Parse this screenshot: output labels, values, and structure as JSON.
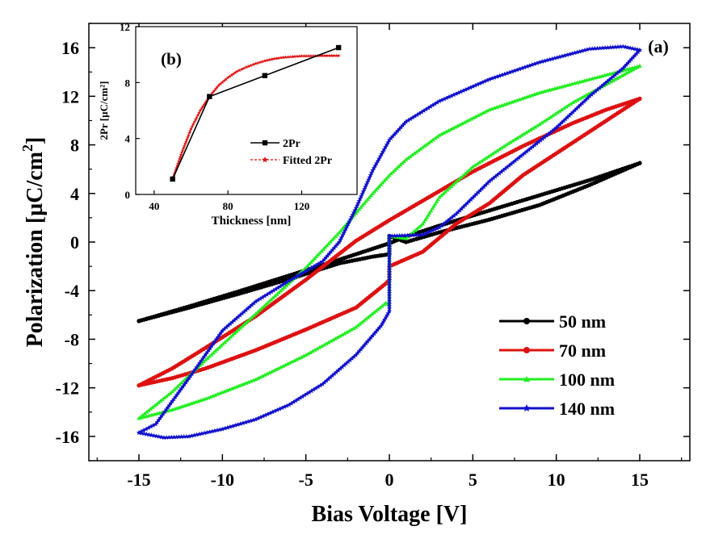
{
  "chart_data": [
    {
      "type": "line",
      "panel_label": "(a)",
      "xlabel": "Bias Voltage [V]",
      "ylabel_main": "Polarization [µC/cm",
      "ylabel_sup": "2",
      "ylabel_close": "]",
      "xlim": [
        -18,
        18
      ],
      "ylim": [
        -18,
        18
      ],
      "xticks": [
        -15,
        -10,
        -5,
        0,
        5,
        10,
        15
      ],
      "xtick_labels": [
        "-15",
        "-10",
        "-5",
        "0",
        "5",
        "10",
        "15"
      ],
      "yticks": [
        -16,
        -12,
        -8,
        -4,
        0,
        4,
        8,
        12,
        16
      ],
      "ytick_labels": [
        "-16",
        "-12",
        "-8",
        "-4",
        "0",
        "4",
        "8",
        "12",
        "16"
      ],
      "legend_position": "bottom-right",
      "series": [
        {
          "name": "50 nm",
          "color": "#000000",
          "marker": "circle",
          "upper": [
            [
              -15,
              -6.5
            ],
            [
              -12,
              -5.3
            ],
            [
              -9,
              -4.05
            ],
            [
              -6,
              -2.75
            ],
            [
              -3,
              -1.45
            ],
            [
              -1,
              -0.55
            ],
            [
              0,
              -0.1
            ],
            [
              1,
              0.45
            ],
            [
              3,
              1.35
            ],
            [
              6,
              2.6
            ],
            [
              9,
              3.85
            ],
            [
              12,
              5.1
            ],
            [
              15,
              6.5
            ]
          ],
          "lower": [
            [
              -15,
              -6.5
            ],
            [
              -12,
              -5.4
            ],
            [
              -9,
              -4.25
            ],
            [
              -6,
              -3.05
            ],
            [
              -3,
              -1.75
            ],
            [
              -1,
              -1.2
            ],
            [
              0,
              -1.0
            ],
            [
              0,
              0.5
            ],
            [
              1,
              0.0
            ],
            [
              3,
              0.8
            ],
            [
              6,
              1.85
            ],
            [
              9,
              3.05
            ],
            [
              12,
              4.7
            ],
            [
              15,
              6.5
            ]
          ]
        },
        {
          "name": "70 nm",
          "color": "#dd1111",
          "marker": "circle",
          "upper": [
            [
              -15,
              -11.8
            ],
            [
              -13,
              -10.4
            ],
            [
              -11,
              -8.7
            ],
            [
              -8,
              -6.1
            ],
            [
              -5,
              -3.1
            ],
            [
              -2,
              0.1
            ],
            [
              0,
              1.8
            ],
            [
              2,
              3.4
            ],
            [
              5,
              5.8
            ],
            [
              8,
              7.9
            ],
            [
              11,
              9.8
            ],
            [
              13,
              10.9
            ],
            [
              15,
              11.8
            ]
          ],
          "lower": [
            [
              -15,
              -11.8
            ],
            [
              -13,
              -11.2
            ],
            [
              -11,
              -10.4
            ],
            [
              -8,
              -8.9
            ],
            [
              -5,
              -7.2
            ],
            [
              -2,
              -5.4
            ],
            [
              -0.2,
              -3.4
            ],
            [
              0,
              -3.1
            ],
            [
              0,
              -2.0
            ],
            [
              2,
              -0.8
            ],
            [
              4,
              1.5
            ],
            [
              6,
              3.2
            ],
            [
              8,
              5.5
            ],
            [
              11,
              8.2
            ],
            [
              13,
              10.0
            ],
            [
              15,
              11.8
            ]
          ]
        },
        {
          "name": "100 nm",
          "color": "#22ee22",
          "marker": "triangle",
          "upper": [
            [
              -15,
              -14.5
            ],
            [
              -13,
              -12.3
            ],
            [
              -11,
              -9.7
            ],
            [
              -8,
              -5.9
            ],
            [
              -5,
              -2.1
            ],
            [
              -3,
              0.8
            ],
            [
              -1,
              4.0
            ],
            [
              0,
              5.5
            ],
            [
              1,
              6.8
            ],
            [
              3,
              8.8
            ],
            [
              6,
              10.9
            ],
            [
              9,
              12.3
            ],
            [
              12,
              13.4
            ],
            [
              15,
              14.5
            ]
          ],
          "lower": [
            [
              -15,
              -14.5
            ],
            [
              -13,
              -13.8
            ],
            [
              -11,
              -12.9
            ],
            [
              -8,
              -11.3
            ],
            [
              -5,
              -9.3
            ],
            [
              -2,
              -7.0
            ],
            [
              -0.2,
              -5.0
            ],
            [
              0,
              -5.2
            ],
            [
              0,
              0.5
            ],
            [
              1,
              0.3
            ],
            [
              2,
              1.5
            ],
            [
              3,
              3.7
            ],
            [
              5,
              6.2
            ],
            [
              7,
              8.0
            ],
            [
              9,
              9.7
            ],
            [
              11,
              11.5
            ],
            [
              13,
              13.0
            ],
            [
              15,
              14.5
            ]
          ]
        },
        {
          "name": "140 nm",
          "color": "#1111cc",
          "marker": "star",
          "upper": [
            [
              -15,
              -15.7
            ],
            [
              -14,
              -15.0
            ],
            [
              -12,
              -11.2
            ],
            [
              -10,
              -7.3
            ],
            [
              -8,
              -4.9
            ],
            [
              -6,
              -3.2
            ],
            [
              -4,
              -1.6
            ],
            [
              -3,
              0.0
            ],
            [
              -2,
              2.8
            ],
            [
              -1,
              5.9
            ],
            [
              0,
              8.4
            ],
            [
              1,
              9.9
            ],
            [
              3,
              11.6
            ],
            [
              6,
              13.4
            ],
            [
              9,
              14.8
            ],
            [
              12,
              15.9
            ],
            [
              14,
              16.1
            ],
            [
              15,
              15.8
            ]
          ],
          "lower": [
            [
              -15,
              -15.7
            ],
            [
              -13.5,
              -16.1
            ],
            [
              -12,
              -16.0
            ],
            [
              -10,
              -15.4
            ],
            [
              -8,
              -14.6
            ],
            [
              -6,
              -13.4
            ],
            [
              -4,
              -11.7
            ],
            [
              -2,
              -9.3
            ],
            [
              -0.5,
              -6.9
            ],
            [
              0,
              -5.7
            ],
            [
              0,
              0.5
            ],
            [
              2,
              0.6
            ],
            [
              3,
              1.2
            ],
            [
              4,
              2.3
            ],
            [
              6,
              5.0
            ],
            [
              8,
              7.2
            ],
            [
              10,
              9.4
            ],
            [
              12,
              12.0
            ],
            [
              14,
              14.3
            ],
            [
              15,
              15.8
            ]
          ]
        }
      ]
    },
    {
      "type": "line",
      "panel_label": "(b)",
      "xlabel": "Thickness [nm]",
      "ylabel": "2Pr [µC/cm²]",
      "xlim": [
        30,
        150
      ],
      "ylim": [
        0,
        12
      ],
      "xticks": [
        40,
        80,
        120
      ],
      "xtick_labels": [
        "40",
        "80",
        "120"
      ],
      "yticks": [
        0,
        4,
        8,
        12
      ],
      "ytick_labels": [
        "0",
        "4",
        "8",
        "12"
      ],
      "legend_position": "center-right",
      "series": [
        {
          "name": "2Pr",
          "color": "#000000",
          "marker": "square",
          "x": [
            50,
            70,
            100,
            140
          ],
          "y": [
            1.1,
            7.0,
            8.5,
            10.5
          ]
        },
        {
          "name": "Fitted 2Pr",
          "color": "#dd1111",
          "marker": "star",
          "x": [
            50,
            55,
            60,
            65,
            70,
            75,
            80,
            85,
            90,
            95,
            100,
            105,
            110,
            115,
            120,
            125,
            130,
            135,
            140
          ],
          "y": [
            1.1,
            3.0,
            4.7,
            6.0,
            7.0,
            7.8,
            8.35,
            8.8,
            9.1,
            9.35,
            9.55,
            9.7,
            9.8,
            9.85,
            9.9,
            9.9,
            9.92,
            9.92,
            9.92
          ]
        }
      ]
    }
  ]
}
